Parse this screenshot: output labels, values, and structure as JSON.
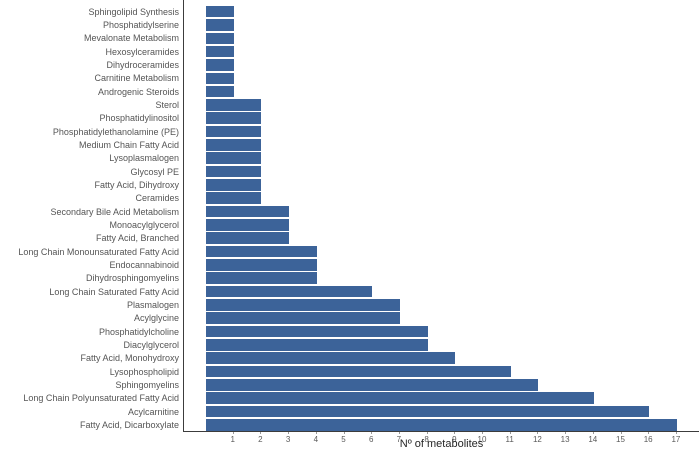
{
  "chart_data": {
    "type": "bar",
    "orientation": "horizontal",
    "title": "",
    "xlabel": "Nº of metabolites",
    "ylabel": "",
    "xlim": [
      0,
      17.85
    ],
    "x_ticks": [
      1,
      2,
      3,
      4,
      5,
      6,
      7,
      8,
      9,
      10,
      11,
      12,
      13,
      14,
      15,
      16,
      17
    ],
    "grid": false,
    "legend": false,
    "bar_color": "#3c6399",
    "axis_line_color": "#3c3c3c",
    "category_label_color": "#555555",
    "tick_label_color": "#595959",
    "categories": [
      "Sphingolipid Synthesis",
      "Phosphatidylserine",
      "Mevalonate Metabolism",
      "Hexosylceramides",
      "Dihydroceramides",
      "Carnitine Metabolism",
      "Androgenic Steroids",
      "Sterol",
      "Phosphatidylinositol",
      "Phosphatidylethanolamine (PE)",
      "Medium Chain Fatty Acid",
      "Lysoplasmalogen",
      "Glycosyl PE",
      "Fatty Acid, Dihydroxy",
      "Ceramides",
      "Secondary Bile Acid Metabolism",
      "Monoacylglycerol",
      "Fatty Acid, Branched",
      "Long Chain Monounsaturated Fatty Acid",
      "Endocannabinoid",
      "Dihydrosphingomyelins",
      "Long Chain Saturated Fatty Acid",
      "Plasmalogen",
      "Acylglycine",
      "Phosphatidylcholine",
      "Diacylglycerol",
      "Fatty Acid, Monohydroxy",
      "Lysophospholipid",
      "Sphingomyelins",
      "Long Chain Polyunsaturated Fatty Acid",
      "Acylcarnitine",
      "Fatty Acid, Dicarboxylate"
    ],
    "values": [
      1,
      1,
      1,
      1,
      1,
      1,
      1,
      2,
      2,
      2,
      2,
      2,
      2,
      2,
      2,
      3,
      3,
      3,
      4,
      4,
      4,
      6,
      7,
      7,
      8,
      8,
      9,
      11,
      12,
      14,
      16,
      17
    ]
  }
}
